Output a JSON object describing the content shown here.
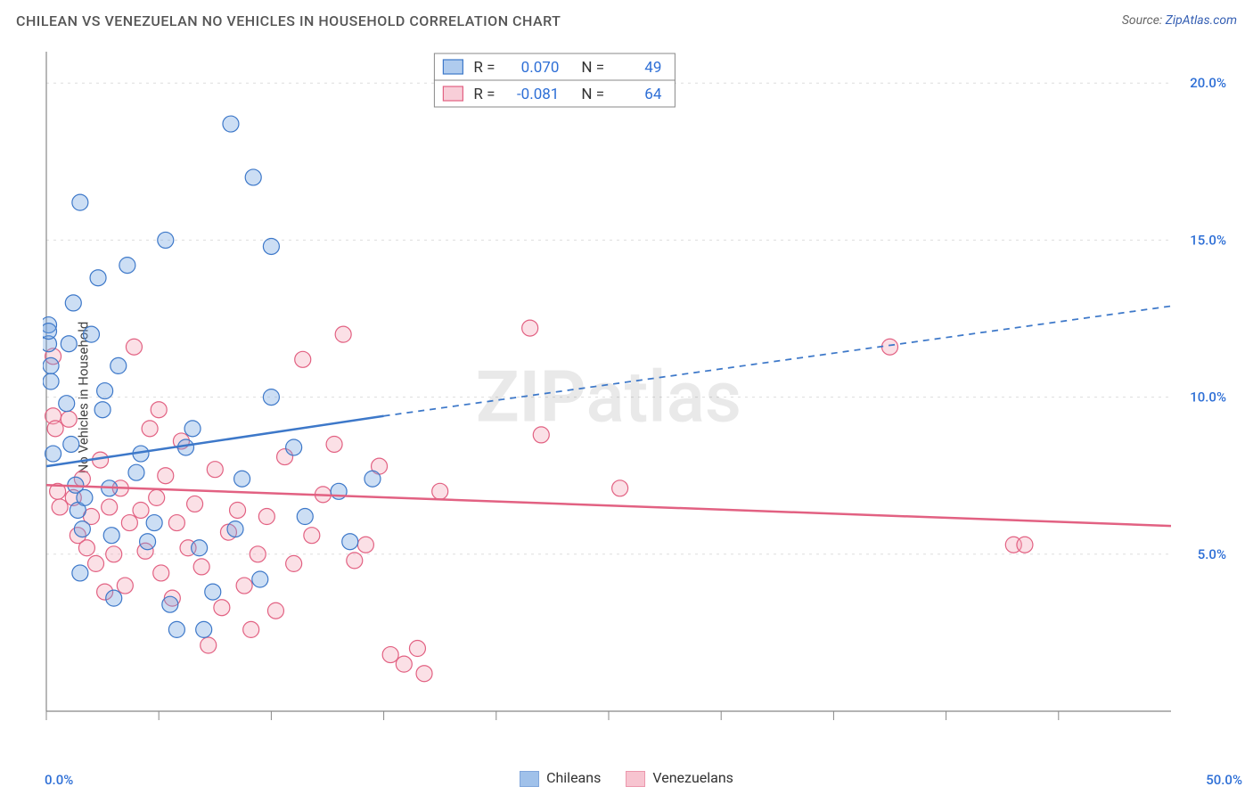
{
  "header": {
    "title": "CHILEAN VS VENEZUELAN NO VEHICLES IN HOUSEHOLD CORRELATION CHART",
    "source_prefix": "Source: ",
    "source_link": "ZipAtlas.com"
  },
  "chart": {
    "type": "scatter",
    "y_axis_label": "No Vehicles in Household",
    "background_color": "#ffffff",
    "grid_color": "#dddddd",
    "axis_color": "#888888",
    "tick_color": "#888888",
    "x_range": [
      0,
      50
    ],
    "y_range": [
      0,
      21
    ],
    "x_ticks": [
      0,
      5,
      10,
      15,
      20,
      25,
      30,
      35,
      40,
      45
    ],
    "y_gridlines": [
      5,
      10,
      15,
      20
    ],
    "y_tick_labels": [
      {
        "v": 5,
        "text": "5.0%"
      },
      {
        "v": 10,
        "text": "10.0%"
      },
      {
        "v": 15,
        "text": "15.0%"
      },
      {
        "v": 20,
        "text": "20.0%"
      }
    ],
    "x_limit_labels": {
      "left": "0.0%",
      "right": "50.0%"
    },
    "marker_radius": 9,
    "marker_stroke_width": 1.2,
    "marker_fill_opacity": 0.35,
    "trend_line_width": 2.5,
    "watermark": {
      "zip": "ZIP",
      "rest": "atlas"
    }
  },
  "series": {
    "chileans": {
      "label": "Chileans",
      "color": "#6ea0e0",
      "stroke": "#3d78c9",
      "trend": {
        "solid": {
          "x1": 0,
          "y1": 7.8,
          "x2": 15,
          "y2": 9.4
        },
        "dashed": {
          "x1": 15,
          "y1": 9.4,
          "x2": 50,
          "y2": 12.9
        }
      },
      "stats": {
        "R": "0.070",
        "N": "49"
      },
      "points": [
        [
          0.1,
          12.3
        ],
        [
          0.1,
          11.7
        ],
        [
          0.2,
          11.0
        ],
        [
          0.2,
          10.5
        ],
        [
          0.3,
          8.2
        ],
        [
          1.5,
          16.2
        ],
        [
          1.0,
          11.7
        ],
        [
          1.2,
          13.0
        ],
        [
          0.9,
          9.8
        ],
        [
          1.1,
          8.5
        ],
        [
          1.3,
          7.2
        ],
        [
          1.4,
          6.4
        ],
        [
          1.6,
          5.8
        ],
        [
          1.5,
          4.4
        ],
        [
          1.7,
          6.8
        ],
        [
          2.0,
          12.0
        ],
        [
          2.3,
          13.8
        ],
        [
          2.5,
          9.6
        ],
        [
          2.6,
          10.2
        ],
        [
          2.8,
          7.1
        ],
        [
          2.9,
          5.6
        ],
        [
          3.0,
          3.6
        ],
        [
          3.2,
          11.0
        ],
        [
          3.6,
          14.2
        ],
        [
          4.0,
          7.6
        ],
        [
          4.2,
          8.2
        ],
        [
          4.5,
          5.4
        ],
        [
          4.8,
          6.0
        ],
        [
          5.3,
          15.0
        ],
        [
          5.5,
          3.4
        ],
        [
          5.8,
          2.6
        ],
        [
          6.2,
          8.4
        ],
        [
          6.5,
          9.0
        ],
        [
          6.8,
          5.2
        ],
        [
          7.0,
          2.6
        ],
        [
          7.4,
          3.8
        ],
        [
          8.2,
          18.7
        ],
        [
          8.4,
          5.8
        ],
        [
          8.7,
          7.4
        ],
        [
          9.2,
          17.0
        ],
        [
          9.5,
          4.2
        ],
        [
          10.0,
          14.8
        ],
        [
          10.0,
          10.0
        ],
        [
          11.0,
          8.4
        ],
        [
          11.5,
          6.2
        ],
        [
          13.0,
          7.0
        ],
        [
          13.5,
          5.4
        ],
        [
          14.5,
          7.4
        ],
        [
          0.1,
          12.1
        ]
      ]
    },
    "venezuelans": {
      "label": "Venezuelans",
      "color": "#f3a6b8",
      "stroke": "#e26182",
      "trend": {
        "solid": {
          "x1": 0,
          "y1": 7.2,
          "x2": 50,
          "y2": 5.9
        }
      },
      "stats": {
        "R": "-0.081",
        "N": "64"
      },
      "points": [
        [
          0.3,
          11.3
        ],
        [
          0.3,
          9.4
        ],
        [
          0.4,
          9.0
        ],
        [
          0.5,
          7.0
        ],
        [
          0.6,
          6.5
        ],
        [
          1.0,
          9.3
        ],
        [
          1.2,
          6.8
        ],
        [
          1.4,
          5.6
        ],
        [
          1.6,
          7.4
        ],
        [
          1.8,
          5.2
        ],
        [
          2.0,
          6.2
        ],
        [
          2.2,
          4.7
        ],
        [
          2.4,
          8.0
        ],
        [
          2.6,
          3.8
        ],
        [
          2.8,
          6.5
        ],
        [
          3.0,
          5.0
        ],
        [
          3.3,
          7.1
        ],
        [
          3.5,
          4.0
        ],
        [
          3.7,
          6.0
        ],
        [
          3.9,
          11.6
        ],
        [
          4.2,
          6.4
        ],
        [
          4.4,
          5.1
        ],
        [
          4.6,
          9.0
        ],
        [
          4.9,
          6.8
        ],
        [
          5.1,
          4.4
        ],
        [
          5.3,
          7.5
        ],
        [
          5.6,
          3.6
        ],
        [
          5.8,
          6.0
        ],
        [
          6.0,
          8.6
        ],
        [
          6.3,
          5.2
        ],
        [
          6.6,
          6.6
        ],
        [
          6.9,
          4.6
        ],
        [
          7.2,
          2.1
        ],
        [
          7.5,
          7.7
        ],
        [
          7.8,
          3.3
        ],
        [
          8.1,
          5.7
        ],
        [
          8.5,
          6.4
        ],
        [
          8.8,
          4.0
        ],
        [
          9.1,
          2.6
        ],
        [
          9.4,
          5.0
        ],
        [
          9.8,
          6.2
        ],
        [
          10.2,
          3.2
        ],
        [
          10.6,
          8.1
        ],
        [
          11.0,
          4.7
        ],
        [
          11.4,
          11.2
        ],
        [
          11.8,
          5.6
        ],
        [
          12.3,
          6.9
        ],
        [
          12.8,
          8.5
        ],
        [
          13.2,
          12.0
        ],
        [
          13.7,
          4.8
        ],
        [
          14.2,
          5.3
        ],
        [
          14.8,
          7.8
        ],
        [
          15.3,
          1.8
        ],
        [
          15.9,
          1.5
        ],
        [
          16.5,
          2.0
        ],
        [
          16.8,
          1.2
        ],
        [
          17.5,
          7.0
        ],
        [
          21.5,
          12.2
        ],
        [
          22.0,
          8.8
        ],
        [
          25.5,
          7.1
        ],
        [
          37.5,
          11.6
        ],
        [
          43.0,
          5.3
        ],
        [
          43.5,
          5.3
        ],
        [
          5.0,
          9.6
        ]
      ]
    }
  },
  "stats_box_labels": {
    "R": "R =",
    "N": "N ="
  },
  "bottom_legend_order": [
    "chileans",
    "venezuelans"
  ]
}
